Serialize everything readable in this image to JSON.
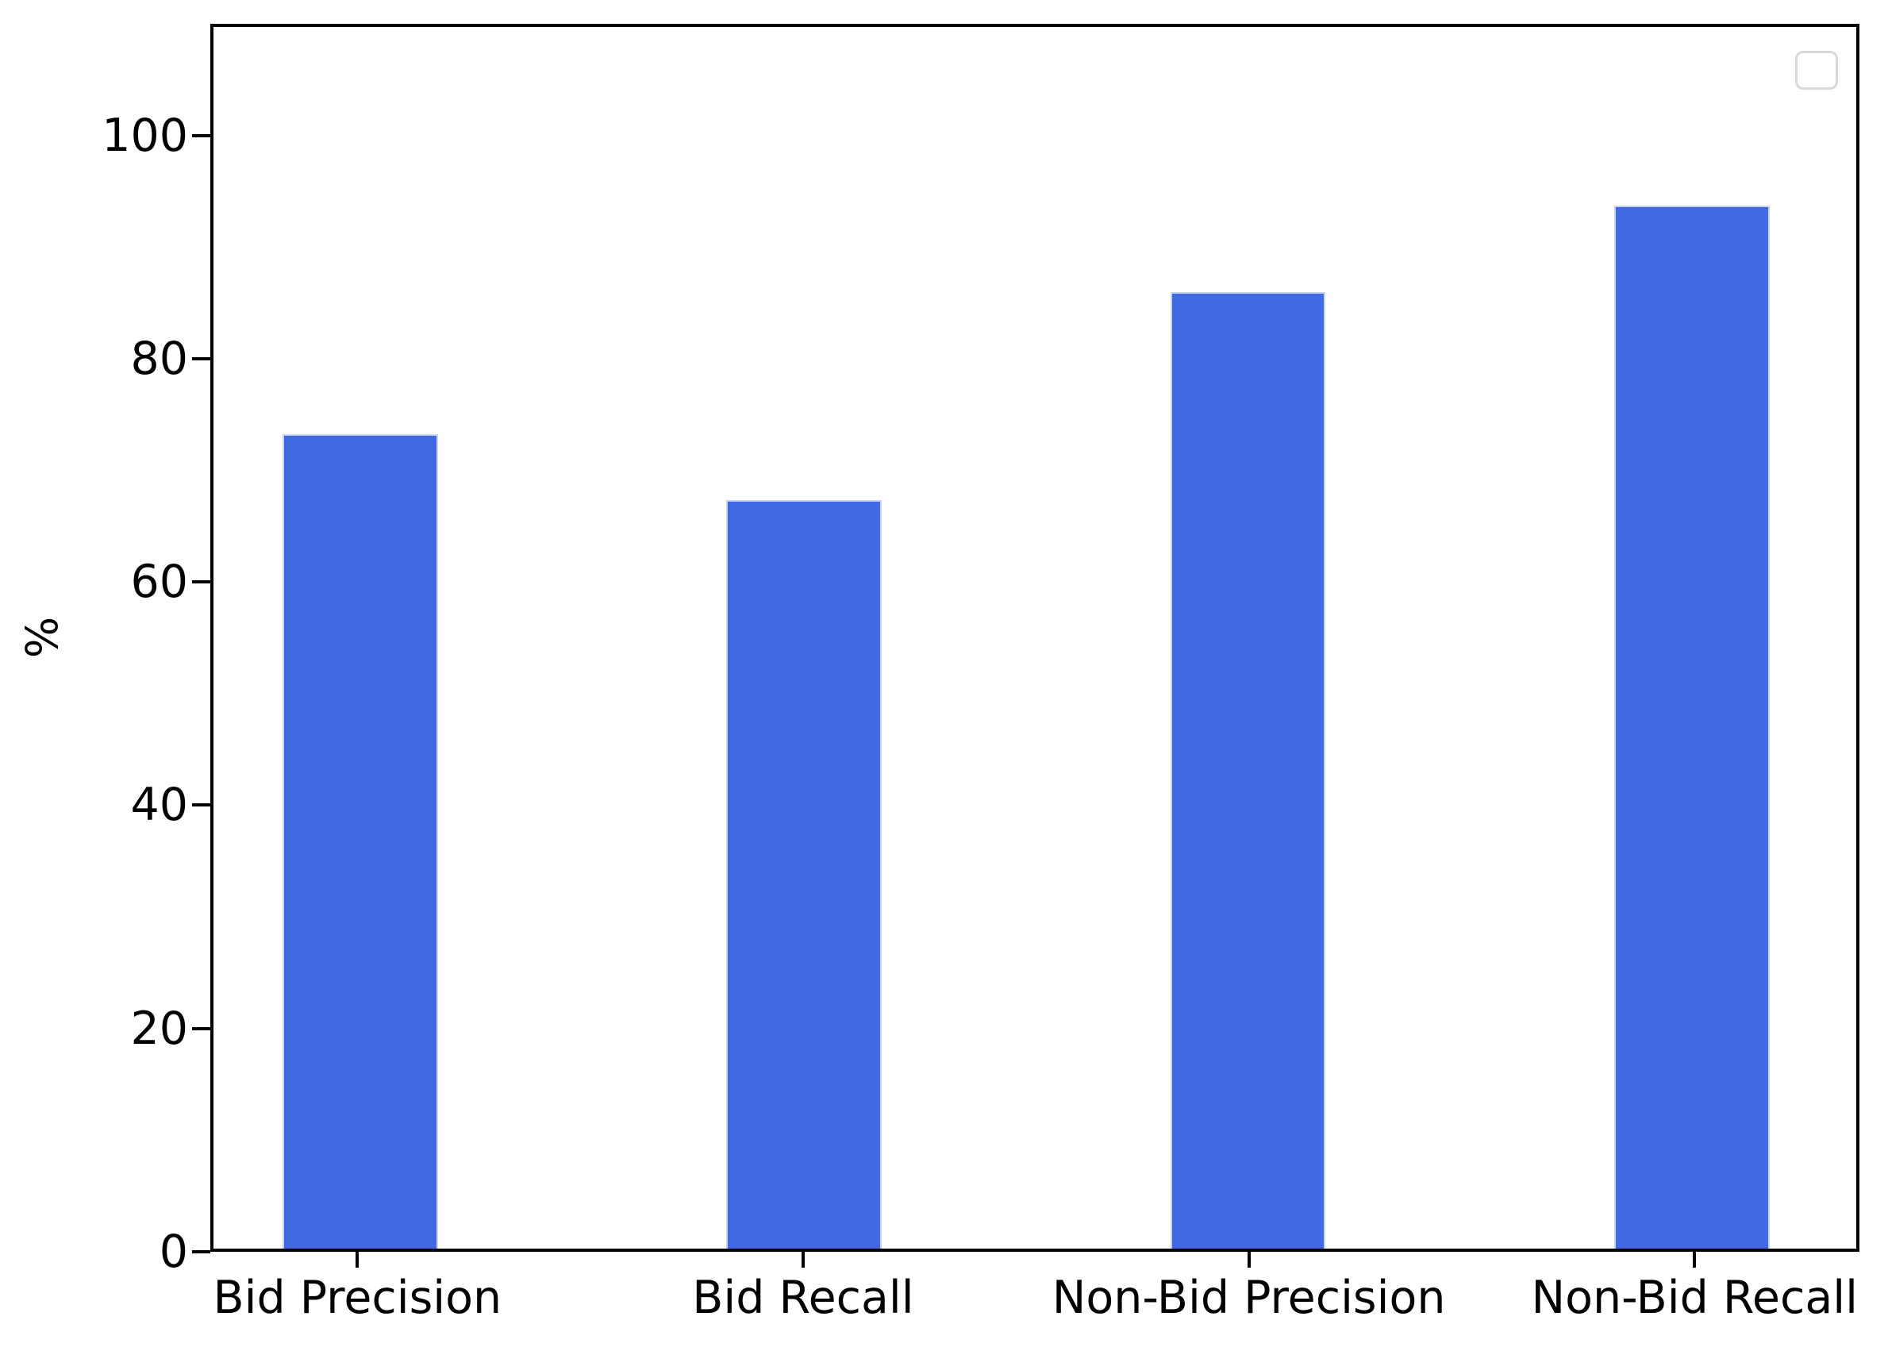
{
  "chart_data": {
    "type": "bar",
    "title": "",
    "categories": [
      "Bid Precision",
      "Bid Recall",
      "Non-Bid Precision",
      "Non-Bid Recall"
    ],
    "values": [
      73.3,
      67.4,
      86.1,
      93.9
    ],
    "xlabel": "",
    "ylabel": "%",
    "ylim": [
      0,
      110
    ],
    "xlim": [
      -0.33,
      3.37
    ],
    "yticks": [
      0,
      20,
      40,
      60,
      80,
      100
    ],
    "ytick_labels": [
      "0",
      "20",
      "40",
      "60",
      "80",
      "100"
    ],
    "bar_width_data_units": 0.35,
    "bar_color": "#4169E1",
    "bar_edge_color": "#c9d4f2",
    "axis_color": "#000000",
    "background_color": "#ffffff",
    "grid": false,
    "legend": {
      "present": true,
      "entries": [],
      "position": "upper right",
      "note": "empty rounded legend frame with no entries",
      "border_color": "#d9d9d9"
    }
  }
}
